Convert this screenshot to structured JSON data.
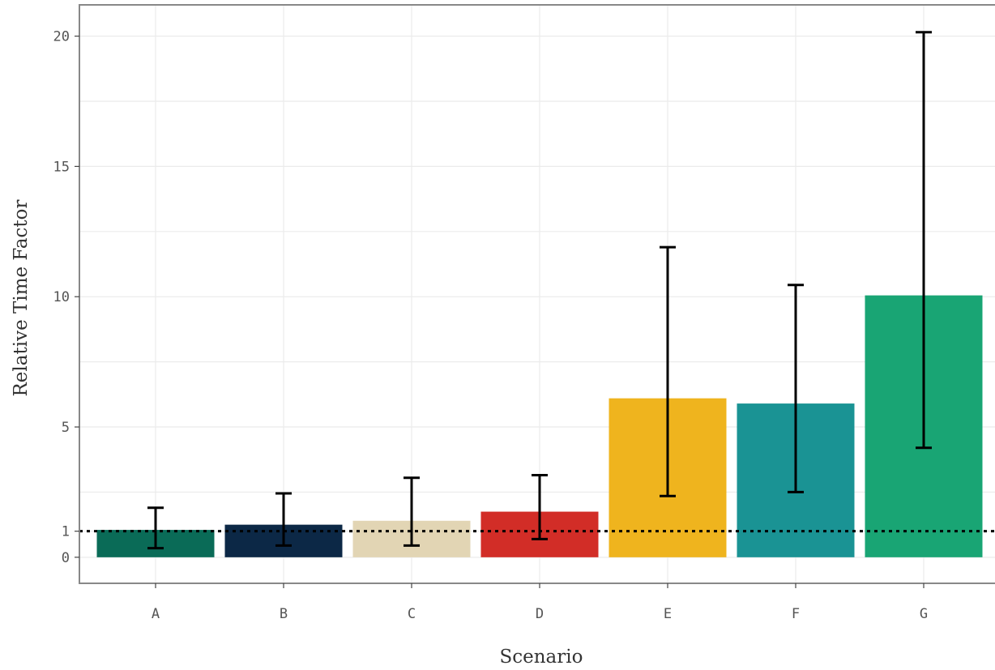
{
  "chart_data": {
    "type": "bar",
    "title": "",
    "xlabel": "Scenario",
    "ylabel": "Relative Time Factor",
    "categories": [
      "A",
      "B",
      "C",
      "D",
      "E",
      "F",
      "G"
    ],
    "values": [
      1.05,
      1.25,
      1.4,
      1.75,
      6.1,
      5.9,
      10.05
    ],
    "error_low": [
      0.35,
      0.45,
      0.45,
      0.7,
      2.35,
      2.5,
      4.2
    ],
    "error_high": [
      1.9,
      2.45,
      3.05,
      3.15,
      11.9,
      10.45,
      20.15
    ],
    "colors": [
      "#0a6b57",
      "#0c2846",
      "#e2d5b4",
      "#d22d27",
      "#efb41e",
      "#1a9394",
      "#19a574"
    ],
    "ylim": [
      -1,
      21.2
    ],
    "yticks": [
      0,
      1,
      5,
      10,
      15,
      20
    ],
    "ytick_labels": [
      "0",
      "1",
      "5",
      "10",
      "15",
      "20"
    ],
    "reference_line": {
      "y": 1,
      "style": "dotted",
      "color": "#000000"
    },
    "grid": true,
    "legend": "none"
  }
}
